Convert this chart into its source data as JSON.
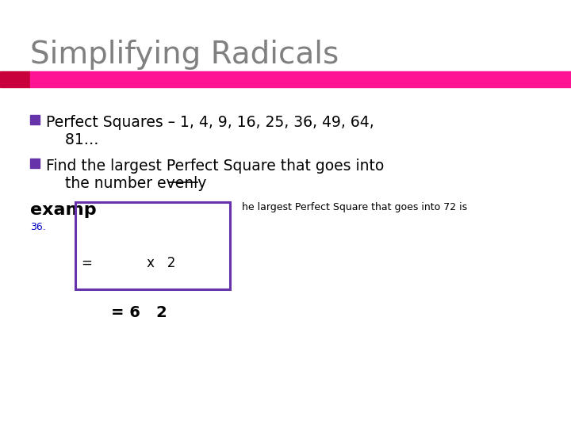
{
  "title": "Simplifying Radicals",
  "title_color": "#808080",
  "title_fontsize": 28,
  "accent_bar_color": "#FF1493",
  "accent_bar_left_color": "#C8003C",
  "background_color": "#FFFFFF",
  "bullet_color": "#6633AA",
  "bullet1_line1": "Perfect Squares – 1, 4, 9, 16, 25, 36, 49, 64,",
  "bullet1_line2": "    81…",
  "bullet2_line1": "Find the largest Perfect Square that goes into",
  "bullet2_line2": "    the number evenly",
  "example_label": "examp",
  "callout_line1": "he largest Perfect Square that goes into 72 is",
  "callout_line2": "36.",
  "callout_color": "#000000",
  "callout_link_color": "#0000CC",
  "box_color": "#6633AA",
  "box_eq_text": "=             x   2",
  "bottom_text": "= 6   2",
  "text_color": "#000000",
  "font_family": "DejaVu Sans"
}
